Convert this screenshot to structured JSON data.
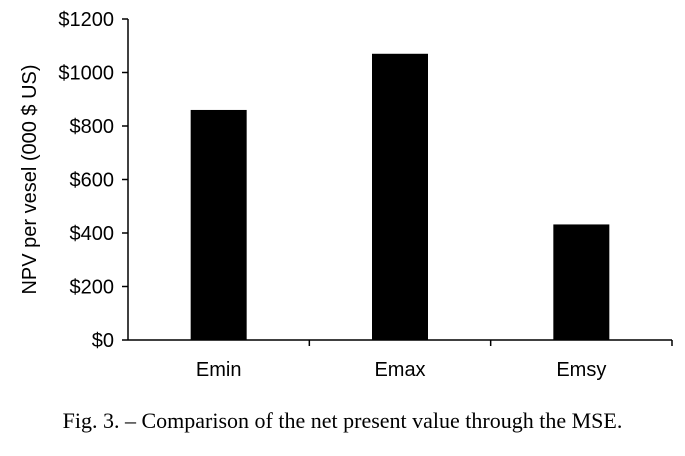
{
  "chart_data": {
    "type": "bar",
    "categories": [
      "Emin",
      "Emax",
      "Emsy"
    ],
    "values": [
      860,
      1070,
      432
    ],
    "ylabel": "NPV per vesel (000 $ US)",
    "xlabel": "",
    "ylim": [
      0,
      1200
    ],
    "yticks": [
      0,
      200,
      400,
      600,
      800,
      1000,
      1200
    ],
    "ytick_labels": [
      "$0",
      "$200",
      "$400",
      "$600",
      "$800",
      "$1000",
      "$1200"
    ],
    "grid": false,
    "legend": "none",
    "bar_color": "#000000"
  },
  "caption": "Fig. 3. – Comparison of the net present value through the MSE."
}
